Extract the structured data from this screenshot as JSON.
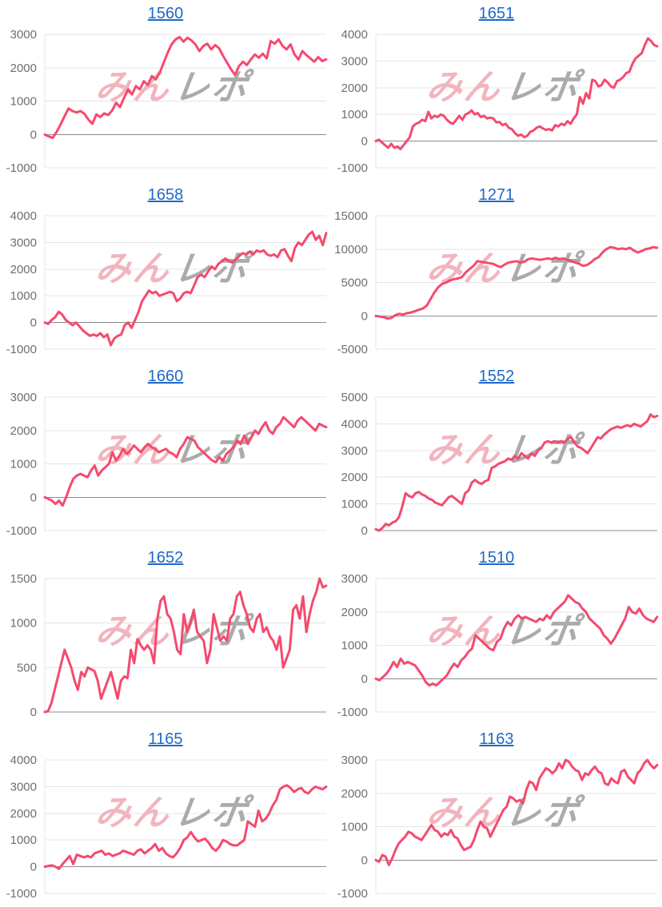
{
  "page": {
    "background": "#ffffff"
  },
  "watermark": {
    "pink_text": "みん",
    "gray_text": "レポ",
    "pink_color": "#f2b4bd",
    "gray_color": "#ababab"
  },
  "colors": {
    "line": "#f44a6e",
    "title_link": "#1e68c6",
    "grid": "#e4e4e4",
    "zero_line": "#8c8c8c",
    "tick_label": "#6f6f6f"
  },
  "chart_data": [
    {
      "type": "line",
      "title": "1560",
      "ylim": [
        -1000,
        3000
      ],
      "yticks": [
        3000,
        2000,
        1000,
        0,
        -1000
      ],
      "grid": true,
      "legend": "none",
      "values": [
        0,
        -60,
        -100,
        80,
        300,
        550,
        780,
        700,
        660,
        700,
        620,
        450,
        320,
        600,
        520,
        630,
        580,
        720,
        950,
        820,
        1100,
        1350,
        1200,
        1450,
        1350,
        1600,
        1480,
        1750,
        1650,
        1850,
        2150,
        2450,
        2700,
        2850,
        2920,
        2780,
        2900,
        2820,
        2700,
        2500,
        2650,
        2720,
        2550,
        2680,
        2580,
        2350,
        2150,
        1950,
        1780,
        2050,
        2180,
        2080,
        2250,
        2400,
        2300,
        2420,
        2280,
        2800,
        2720,
        2850,
        2650,
        2550,
        2700,
        2400,
        2250,
        2500,
        2380,
        2280,
        2180,
        2320,
        2200,
        2250
      ]
    },
    {
      "type": "line",
      "title": "1651",
      "ylim": [
        -1000,
        4000
      ],
      "yticks": [
        4000,
        3000,
        2000,
        1000,
        0,
        -1000
      ],
      "grid": true,
      "legend": "none",
      "values": [
        0,
        50,
        -50,
        -150,
        -250,
        -100,
        -250,
        -200,
        -300,
        -150,
        0,
        150,
        550,
        650,
        700,
        800,
        750,
        1100,
        850,
        950,
        900,
        1000,
        950,
        800,
        700,
        650,
        800,
        950,
        800,
        1000,
        1050,
        1150,
        1000,
        1050,
        900,
        950,
        850,
        880,
        850,
        700,
        720,
        600,
        650,
        500,
        450,
        300,
        200,
        250,
        150,
        200,
        350,
        400,
        500,
        550,
        480,
        420,
        450,
        400,
        600,
        550,
        650,
        600,
        750,
        650,
        850,
        1000,
        1650,
        1400,
        1800,
        1600,
        2300,
        2250,
        2050,
        2100,
        2300,
        2200,
        2050,
        2000,
        2250,
        2300,
        2400,
        2550,
        2600,
        2900,
        3100,
        3200,
        3300,
        3600,
        3850,
        3750,
        3600,
        3550
      ]
    },
    {
      "type": "line",
      "title": "1658",
      "ylim": [
        -1000,
        4000
      ],
      "yticks": [
        4000,
        3000,
        2000,
        1000,
        0,
        -1000
      ],
      "grid": true,
      "legend": "none",
      "values": [
        0,
        -50,
        100,
        200,
        400,
        300,
        100,
        0,
        -100,
        0,
        -150,
        -300,
        -400,
        -500,
        -450,
        -500,
        -400,
        -550,
        -450,
        -850,
        -600,
        -500,
        -450,
        -100,
        0,
        -200,
        100,
        400,
        800,
        1000,
        1200,
        1100,
        1150,
        1000,
        1050,
        1100,
        1150,
        1100,
        800,
        900,
        1100,
        1150,
        1100,
        1400,
        1700,
        1800,
        1700,
        1900,
        2100,
        2000,
        2200,
        2300,
        2400,
        2300,
        2250,
        2350,
        2500,
        2600,
        2550,
        2650,
        2550,
        2700,
        2650,
        2700,
        2550,
        2500,
        2550,
        2450,
        2700,
        2750,
        2500,
        2300,
        2800,
        3000,
        2900,
        3100,
        3300,
        3400,
        3100,
        3250,
        2900,
        3350
      ]
    },
    {
      "type": "line",
      "title": "1271",
      "ylim": [
        -5000,
        15000
      ],
      "yticks": [
        15000,
        10000,
        5000,
        0,
        -5000
      ],
      "grid": true,
      "legend": "none",
      "values": [
        0,
        -100,
        -200,
        -400,
        -300,
        100,
        300,
        200,
        400,
        500,
        700,
        900,
        1100,
        1500,
        2500,
        3500,
        4300,
        4800,
        5000,
        5300,
        5500,
        5600,
        5800,
        6500,
        7000,
        7500,
        8200,
        8100,
        8000,
        7900,
        7800,
        7500,
        7300,
        7700,
        8000,
        8100,
        8200,
        8000,
        8100,
        8500,
        8600,
        8500,
        8400,
        8500,
        8600,
        8500,
        8700,
        8500,
        8600,
        8400,
        8200,
        8000,
        7800,
        7500,
        7600,
        8000,
        8500,
        8800,
        9500,
        10000,
        10300,
        10200,
        10000,
        10100,
        10000,
        10200,
        9800,
        9500,
        9700,
        10000,
        10100,
        10300,
        10200
      ]
    },
    {
      "type": "line",
      "title": "1660",
      "ylim": [
        -1000,
        3000
      ],
      "yticks": [
        3000,
        2000,
        1000,
        0,
        -1000
      ],
      "grid": true,
      "legend": "none",
      "values": [
        0,
        -50,
        -100,
        -200,
        -100,
        -250,
        0,
        300,
        550,
        650,
        700,
        650,
        600,
        800,
        950,
        650,
        800,
        900,
        1000,
        1350,
        1100,
        1250,
        1450,
        1300,
        1400,
        1550,
        1450,
        1350,
        1500,
        1600,
        1500,
        1450,
        1350,
        1400,
        1450,
        1350,
        1300,
        1200,
        1450,
        1600,
        1800,
        1750,
        1700,
        1500,
        1400,
        1300,
        1200,
        1100,
        1050,
        1200,
        1100,
        1300,
        1400,
        1500,
        1700,
        1600,
        1850,
        1600,
        1800,
        2000,
        1900,
        2100,
        2250,
        2000,
        1900,
        2100,
        2200,
        2400,
        2300,
        2200,
        2100,
        2300,
        2400,
        2300,
        2200,
        2100,
        2000,
        2200,
        2150,
        2100
      ]
    },
    {
      "type": "line",
      "title": "1552",
      "ylim": [
        0,
        5000
      ],
      "yticks": [
        5000,
        4000,
        3000,
        2000,
        1000,
        0
      ],
      "grid": true,
      "legend": "none",
      "values": [
        50,
        0,
        100,
        250,
        200,
        300,
        350,
        500,
        900,
        1400,
        1300,
        1250,
        1400,
        1450,
        1350,
        1300,
        1200,
        1150,
        1050,
        1000,
        950,
        1100,
        1250,
        1300,
        1200,
        1100,
        1000,
        1400,
        1500,
        1800,
        1900,
        1800,
        1750,
        1850,
        1900,
        2350,
        2400,
        2500,
        2550,
        2600,
        2700,
        2650,
        2800,
        2700,
        2900,
        2800,
        2700,
        2900,
        2800,
        3000,
        3100,
        3300,
        3350,
        3300,
        3350,
        3300,
        3350,
        3300,
        3450,
        3500,
        3300,
        3150,
        3100,
        3000,
        2900,
        3100,
        3300,
        3500,
        3450,
        3600,
        3700,
        3800,
        3850,
        3900,
        3850,
        3900,
        3950,
        3900,
        4000,
        3950,
        3900,
        4000,
        4100,
        4350,
        4250,
        4300
      ]
    },
    {
      "type": "line",
      "title": "1652",
      "ylim": [
        0,
        1500
      ],
      "yticks": [
        1500,
        1000,
        500,
        0
      ],
      "grid": true,
      "legend": "none",
      "values": [
        0,
        10,
        100,
        250,
        400,
        550,
        700,
        600,
        500,
        350,
        250,
        450,
        400,
        500,
        480,
        460,
        350,
        150,
        250,
        350,
        450,
        300,
        150,
        350,
        400,
        380,
        700,
        550,
        820,
        750,
        700,
        750,
        700,
        550,
        1050,
        1250,
        1300,
        1100,
        1050,
        900,
        700,
        650,
        1100,
        900,
        1000,
        1150,
        900,
        850,
        800,
        550,
        700,
        1100,
        950,
        800,
        850,
        800,
        1050,
        1100,
        1300,
        1350,
        1200,
        1100,
        950,
        900,
        1050,
        1100,
        900,
        950,
        850,
        800,
        700,
        850,
        500,
        600,
        700,
        1150,
        1200,
        1050,
        1300,
        900,
        1100,
        1250,
        1350,
        1500,
        1400,
        1420
      ]
    },
    {
      "type": "line",
      "title": "1510",
      "ylim": [
        -1000,
        3000
      ],
      "yticks": [
        3000,
        2000,
        1000,
        0,
        -1000
      ],
      "grid": true,
      "legend": "none",
      "values": [
        0,
        -50,
        50,
        150,
        300,
        500,
        350,
        600,
        450,
        500,
        450,
        400,
        250,
        100,
        -100,
        -200,
        -150,
        -200,
        -100,
        0,
        100,
        300,
        450,
        350,
        550,
        650,
        800,
        900,
        1300,
        1200,
        1100,
        1000,
        900,
        850,
        1100,
        1200,
        1500,
        1700,
        1600,
        1800,
        1900,
        1800,
        1850,
        1800,
        1750,
        1700,
        1800,
        1750,
        1900,
        1800,
        2000,
        2100,
        2200,
        2300,
        2500,
        2400,
        2300,
        2250,
        2100,
        2000,
        1800,
        1700,
        1600,
        1500,
        1300,
        1200,
        1050,
        1200,
        1400,
        1600,
        1800,
        2150,
        2000,
        1950,
        2100,
        1900,
        1800,
        1750,
        1700,
        1850
      ]
    },
    {
      "type": "line",
      "title": "1165",
      "ylim": [
        -1000,
        4000
      ],
      "yticks": [
        4000,
        3000,
        2000,
        1000,
        0,
        -1000
      ],
      "grid": true,
      "legend": "none",
      "values": [
        0,
        30,
        50,
        0,
        -80,
        100,
        250,
        400,
        100,
        450,
        400,
        350,
        400,
        350,
        500,
        550,
        600,
        450,
        500,
        400,
        450,
        500,
        600,
        550,
        500,
        450,
        600,
        650,
        500,
        600,
        700,
        850,
        600,
        700,
        500,
        400,
        350,
        500,
        700,
        1000,
        1100,
        1300,
        1100,
        950,
        1000,
        1050,
        900,
        700,
        600,
        750,
        1000,
        950,
        850,
        800,
        800,
        900,
        1000,
        1700,
        1600,
        1500,
        2100,
        1700,
        1800,
        2000,
        2300,
        2500,
        2900,
        3000,
        3050,
        2950,
        2800,
        2900,
        2950,
        2800,
        2750,
        2900,
        3000,
        2950,
        2900,
        3000
      ]
    },
    {
      "type": "line",
      "title": "1163",
      "ylim": [
        -1000,
        3000
      ],
      "yticks": [
        3000,
        2000,
        1000,
        0,
        -1000
      ],
      "grid": true,
      "legend": "none",
      "values": [
        0,
        -50,
        150,
        100,
        -150,
        50,
        300,
        500,
        600,
        700,
        850,
        800,
        700,
        650,
        600,
        750,
        900,
        1050,
        900,
        850,
        700,
        800,
        750,
        900,
        700,
        650,
        450,
        300,
        350,
        400,
        600,
        900,
        1150,
        1000,
        950,
        700,
        900,
        1100,
        1300,
        1500,
        1600,
        1900,
        1850,
        1750,
        1800,
        1700,
        2100,
        2350,
        2300,
        2100,
        2450,
        2600,
        2750,
        2700,
        2600,
        2700,
        2900,
        2750,
        3000,
        2950,
        2800,
        2700,
        2650,
        2400,
        2600,
        2550,
        2700,
        2800,
        2650,
        2600,
        2300,
        2250,
        2450,
        2350,
        2300,
        2650,
        2700,
        2500,
        2400,
        2300,
        2600,
        2700,
        2900,
        3000,
        2850,
        2750,
        2850
      ]
    }
  ]
}
